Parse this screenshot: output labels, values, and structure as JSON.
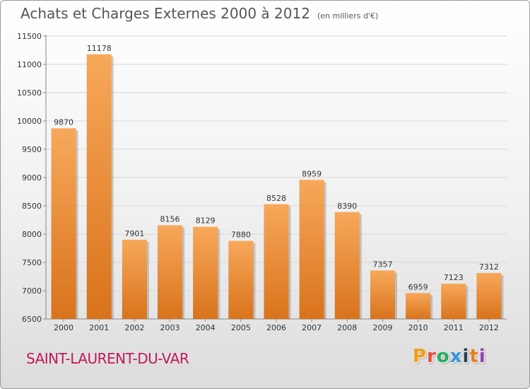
{
  "header": {
    "title": "Achats et Charges Externes 2000 à 2012",
    "subtitle": "(en milliers d'€)"
  },
  "footer": {
    "commune": "SAINT-LAURENT-DU-VAR",
    "logo_letters": [
      "P",
      "r",
      "o",
      "x",
      "i",
      "t",
      "i"
    ],
    "logo_colors": [
      "#f39c12",
      "#e74c3c",
      "#27ae60",
      "#3498db",
      "#2c3e50",
      "#e67e22",
      "#8e44ad"
    ]
  },
  "colors": {
    "bar_light": "#f7a85a",
    "bar_dark": "#d9731c",
    "grid": "#d8d8d8",
    "commune": "#c2185b"
  },
  "chart_data": {
    "type": "bar",
    "title": "Achats et Charges Externes 2000 à 2012",
    "subtitle": "(en milliers d'€)",
    "xlabel": "",
    "ylabel": "",
    "categories": [
      "2000",
      "2001",
      "2002",
      "2003",
      "2004",
      "2005",
      "2006",
      "2007",
      "2008",
      "2009",
      "2010",
      "2011",
      "2012"
    ],
    "values": [
      9870,
      11178,
      7901,
      8156,
      8129,
      7880,
      8528,
      8959,
      8390,
      7357,
      6959,
      7123,
      7312
    ],
    "ylim": [
      6500,
      11500
    ],
    "yticks": [
      6500,
      7000,
      7500,
      8000,
      8500,
      9000,
      9500,
      10000,
      10500,
      11000,
      11500
    ],
    "grid": true
  }
}
